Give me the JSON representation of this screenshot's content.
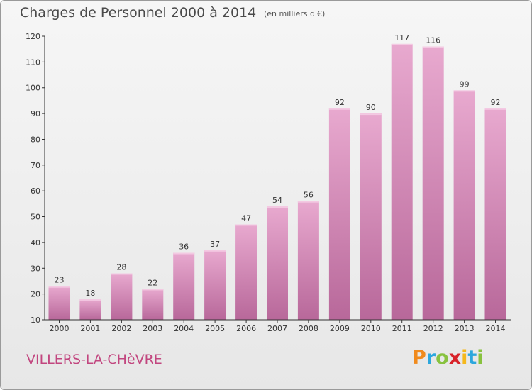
{
  "header": {
    "title": "Charges de Personnel 2000 à 2014",
    "subtitle": "(en milliers d'€)"
  },
  "footer": {
    "city": "VILLERS-LA-CHèVRE",
    "logo": {
      "letters": [
        "P",
        "r",
        "o",
        "x",
        "i",
        "t",
        "i"
      ],
      "colors": [
        "#f08a1c",
        "#2ca7dd",
        "#88c23f",
        "#d8232a",
        "#f5b81c",
        "#2ca7dd",
        "#88c23f"
      ]
    }
  },
  "colors": {
    "bar_top": "#e8a9cf",
    "bar_bottom": "#b8689a",
    "bar_light": "#f3c9e2",
    "axis": "#333333",
    "text": "#333333"
  },
  "chart_data": {
    "type": "bar",
    "categories": [
      "2000",
      "2001",
      "2002",
      "2003",
      "2004",
      "2005",
      "2006",
      "2007",
      "2008",
      "2009",
      "2010",
      "2011",
      "2012",
      "2013",
      "2014"
    ],
    "values": [
      23,
      18,
      28,
      22,
      36,
      37,
      47,
      54,
      56,
      92,
      90,
      117,
      116,
      99,
      92
    ],
    "title": "Charges de Personnel 2000 à 2014",
    "xlabel": "",
    "ylabel": "",
    "ylim": [
      10,
      120
    ],
    "yticks": [
      10,
      20,
      30,
      40,
      50,
      60,
      70,
      80,
      90,
      100,
      110,
      120
    ],
    "grid": false,
    "data_labels": true
  }
}
